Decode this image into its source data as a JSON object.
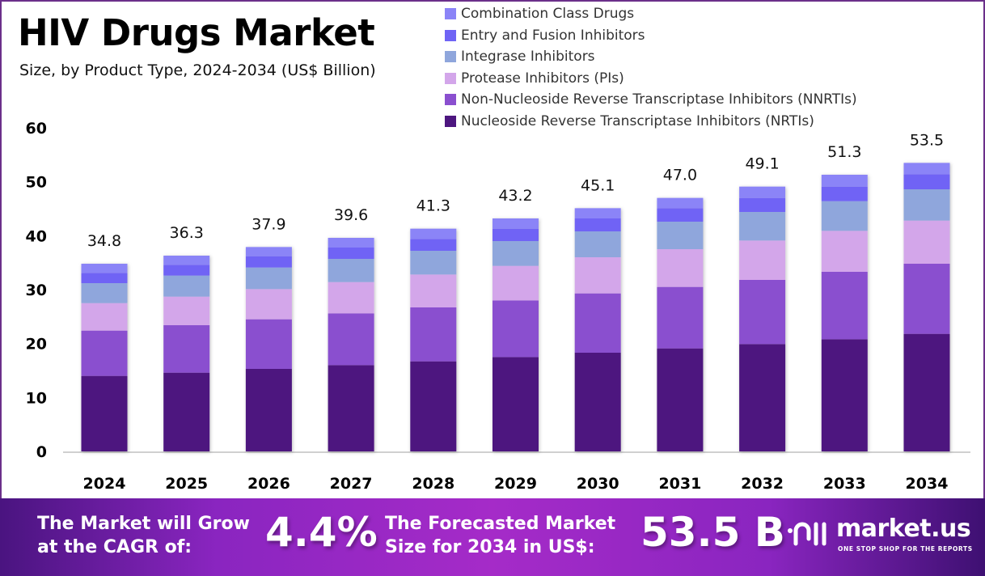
{
  "header": {
    "title": "HIV Drugs Market",
    "subtitle": "Size, by Product Type, 2024-2034 (US$ Billion)"
  },
  "legend": [
    {
      "label": "Combination Class Drugs",
      "color": "#8b84f7"
    },
    {
      "label": "Entry and Fusion Inhibitors",
      "color": "#6f64f5"
    },
    {
      "label": "Integrase Inhibitors",
      "color": "#8fa6dc"
    },
    {
      "label": "Protease Inhibitors (PIs)",
      "color": "#d3a6ea"
    },
    {
      "label": "Non-Nucleoside Reverse Transcriptase Inhibitors (NNRTIs)",
      "color": "#8a4fcf"
    },
    {
      "label": "Nucleoside Reverse Transcriptase Inhibitors (NRTIs)",
      "color": "#4d167f"
    }
  ],
  "chart_data": {
    "type": "bar",
    "stacked": true,
    "title": "HIV Drugs Market",
    "subtitle": "Size, by Product Type, 2024-2034 (US$ Billion)",
    "xlabel": "",
    "ylabel": "",
    "ylim": [
      0,
      60
    ],
    "yticks": [
      0,
      10,
      20,
      30,
      40,
      50,
      60
    ],
    "grid": false,
    "legend_position": "top-right",
    "categories": [
      "2024",
      "2025",
      "2026",
      "2027",
      "2028",
      "2029",
      "2030",
      "2031",
      "2032",
      "2033",
      "2034"
    ],
    "totals": [
      34.8,
      36.3,
      37.9,
      39.6,
      41.3,
      43.2,
      45.1,
      47.0,
      49.1,
      51.3,
      53.5
    ],
    "total_labels": [
      "34.8",
      "36.3",
      "37.9",
      "39.6",
      "41.3",
      "43.2",
      "45.1",
      "47.0",
      "49.1",
      "51.3",
      "53.5"
    ],
    "series": [
      {
        "name": "Nucleoside Reverse Transcriptase Inhibitors (NRTIs)",
        "color": "#4d167f",
        "values": [
          14.0,
          14.6,
          15.3,
          16.0,
          16.7,
          17.5,
          18.3,
          19.1,
          19.9,
          20.8,
          21.8
        ]
      },
      {
        "name": "Non-Nucleoside Reverse Transcriptase Inhibitors (NNRTIs)",
        "color": "#8a4fcf",
        "values": [
          8.4,
          8.8,
          9.2,
          9.6,
          10.0,
          10.5,
          11.0,
          11.4,
          11.9,
          12.5,
          13.0
        ]
      },
      {
        "name": "Protease Inhibitors (PIs)",
        "color": "#d3a6ea",
        "values": [
          5.1,
          5.3,
          5.6,
          5.8,
          6.1,
          6.4,
          6.7,
          7.0,
          7.3,
          7.6,
          8.0
        ]
      },
      {
        "name": "Integrase Inhibitors",
        "color": "#8fa6dc",
        "values": [
          3.7,
          3.9,
          4.0,
          4.3,
          4.4,
          4.6,
          4.8,
          5.1,
          5.3,
          5.5,
          5.8
        ]
      },
      {
        "name": "Entry and Fusion Inhibitors",
        "color": "#6f64f5",
        "values": [
          1.9,
          2.0,
          2.1,
          2.1,
          2.2,
          2.3,
          2.4,
          2.5,
          2.6,
          2.7,
          2.8
        ]
      },
      {
        "name": "Combination Class Drugs",
        "color": "#8b84f7",
        "values": [
          1.7,
          1.7,
          1.7,
          1.8,
          1.9,
          1.9,
          1.9,
          1.9,
          2.1,
          2.2,
          2.1
        ]
      }
    ]
  },
  "banner": {
    "cagr_text_line1": "The Market will Grow",
    "cagr_text_line2": "at the CAGR of:",
    "cagr_value": "4.4%",
    "forecast_text_line1": "The Forecasted Market",
    "forecast_text_line2": "Size for 2034 in US$:",
    "forecast_value": "53.5 B",
    "logo_name": "market.us",
    "logo_tagline": "ONE STOP SHOP FOR THE REPORTS",
    "logo_icon": "market-us-logo-icon"
  }
}
